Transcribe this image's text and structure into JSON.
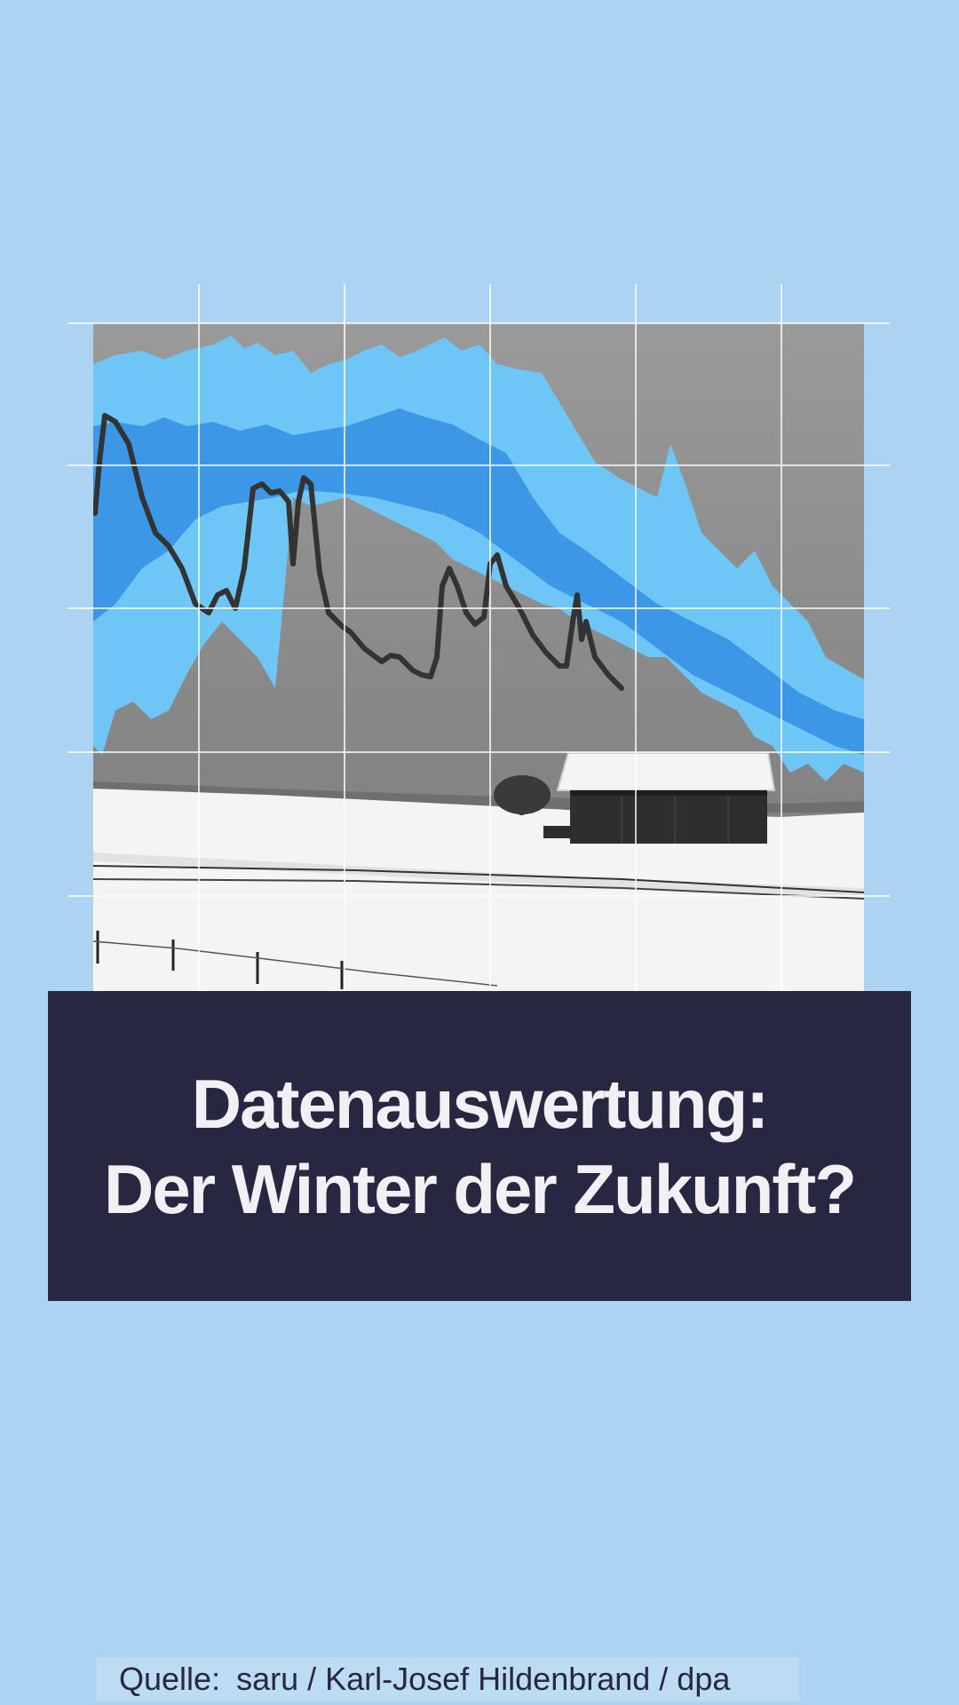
{
  "title": {
    "line1": "Datenauswertung:",
    "line2": "Der Winter der Zukunft?"
  },
  "source": {
    "label": "Quelle:",
    "text": "saru / Karl-Josef Hildenbrand / dpa"
  },
  "colors": {
    "background": "#acd3f2",
    "title_box": "#282742",
    "title_text": "#f2f0f4",
    "band_light": "#6ec6f6",
    "band_dark": "#3c98e6",
    "line": "#333333",
    "sky": "#8f8f8f",
    "snow": "#f4f4f4"
  },
  "illustration": {
    "description_icon": "snowy-barn-photo-with-climate-chart"
  }
}
